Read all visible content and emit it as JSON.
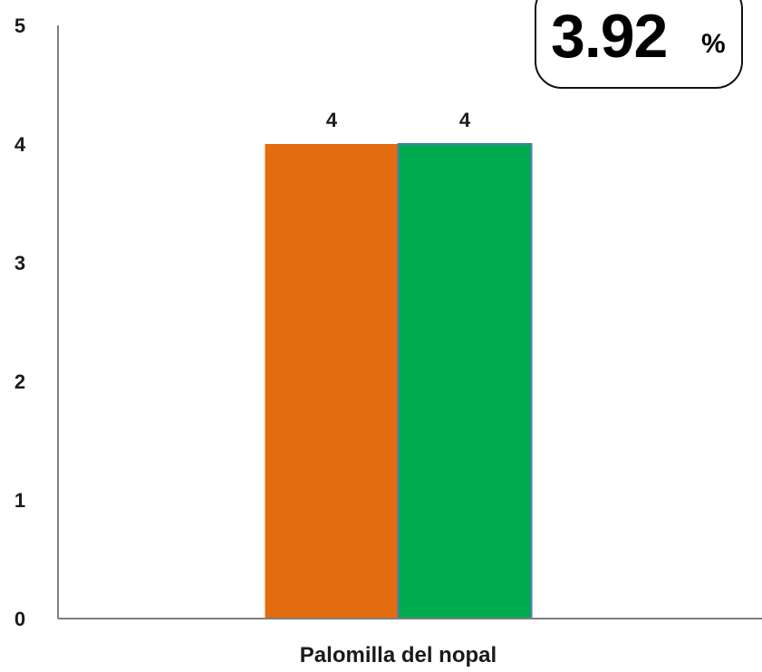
{
  "chart_data": {
    "type": "bar",
    "categories": [
      "Palomilla del nopal"
    ],
    "series": [
      {
        "values": [
          4
        ],
        "color": "#E36C0E"
      },
      {
        "values": [
          4
        ],
        "color": "#00AA4F"
      }
    ],
    "data_labels": true,
    "title": "",
    "xlabel": "",
    "ylabel": "",
    "ylim": [
      0,
      5
    ],
    "yticks": [
      0,
      1,
      2,
      3,
      4,
      5
    ],
    "grid": false,
    "legend": "none"
  },
  "kpi": {
    "value": "3.92",
    "unit": "%"
  },
  "colors": {
    "axis": "#7f7f7f",
    "text": "#1a1a1a",
    "green_bar_border": "#4A7DB5"
  }
}
